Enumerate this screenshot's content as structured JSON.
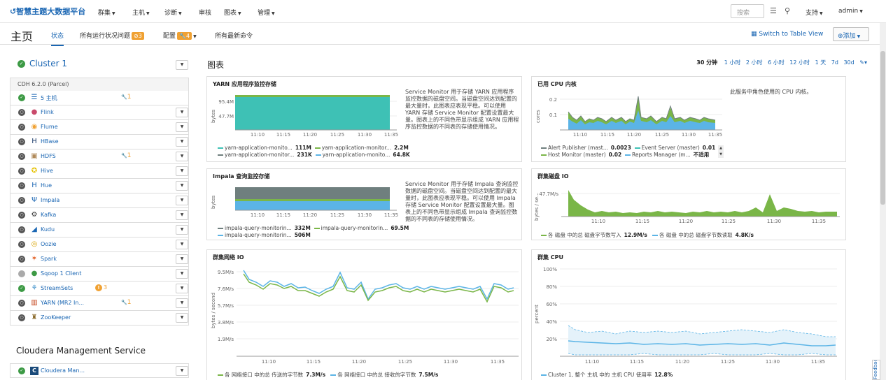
{
  "app": {
    "logo_text": "智慧主题大数据平台"
  },
  "topnav": {
    "items": [
      "群集",
      "主机",
      "诊断",
      "审核",
      "图表",
      "管理"
    ],
    "search_placeholder": "搜索",
    "support": "支持",
    "user": "admin"
  },
  "subbar": {
    "page_title": "主页",
    "tabs": [
      {
        "label": "状态"
      },
      {
        "label": "所有运行状况问题",
        "badge": "3"
      },
      {
        "label": "配置",
        "badge": "4"
      },
      {
        "label": "所有最新命令"
      }
    ],
    "switch_view": "Switch to Table View",
    "add_button": "添加"
  },
  "cluster": {
    "name": "Cluster 1",
    "version": "CDH 6.2.0 (Parcel)",
    "services": [
      {
        "name": "5 主机",
        "icon": "hosts-icon",
        "status": "ok",
        "wrench": "1"
      },
      {
        "name": "Flink",
        "icon": "flink-icon",
        "status": "none"
      },
      {
        "name": "Flume",
        "icon": "flume-icon",
        "status": "none"
      },
      {
        "name": "HBase",
        "icon": "hbase-icon",
        "status": "none"
      },
      {
        "name": "HDFS",
        "icon": "hdfs-icon",
        "status": "none",
        "wrench": "1"
      },
      {
        "name": "Hive",
        "icon": "hive-icon",
        "status": "none"
      },
      {
        "name": "Hue",
        "icon": "hue-icon",
        "status": "none"
      },
      {
        "name": "Impala",
        "icon": "impala-icon",
        "status": "none"
      },
      {
        "name": "Kafka",
        "icon": "kafka-icon",
        "status": "none"
      },
      {
        "name": "Kudu",
        "icon": "kudu-icon",
        "status": "none"
      },
      {
        "name": "Oozie",
        "icon": "oozie-icon",
        "status": "none"
      },
      {
        "name": "Spark",
        "icon": "spark-icon",
        "status": "none"
      },
      {
        "name": "Sqoop 1 Client",
        "icon": "sqoop-icon",
        "status": "gray"
      },
      {
        "name": "StreamSets",
        "icon": "streamsets-icon",
        "status": "ok",
        "warn": "3"
      },
      {
        "name": "YARN (MR2 In...",
        "icon": "yarn-icon",
        "status": "none",
        "wrench": "1"
      },
      {
        "name": "ZooKeeper",
        "icon": "zookeeper-icon",
        "status": "none"
      }
    ]
  },
  "cms": {
    "title": "Cloudera Management Service",
    "item": "Cloudera Man..."
  },
  "charts_header": {
    "title": "图表",
    "ranges": [
      "30 分钟",
      "1 小时",
      "2 小时",
      "6 小时",
      "12 小时",
      "1 天",
      "7d",
      "30d"
    ]
  },
  "colors": {
    "accent": "#1a66b3",
    "teal": "#3ec1b5",
    "green": "#7ab648",
    "blue": "#5bb4e6",
    "orange": "#f0a132",
    "gray": "#6f7f7e"
  },
  "chart_data": [
    {
      "id": "yarn-storage",
      "type": "area",
      "title": "YARN 应用程序监控存储",
      "ylabel": "bytes",
      "yticks": [
        "95.4M",
        "47.7M"
      ],
      "xticks": [
        "11:10",
        "11:15",
        "11:20",
        "11:25",
        "11:30",
        "11:35"
      ],
      "description": "Service Monitor 用于存储 YARN 应用程序监控数据的磁盘空间。当磁盘空间达到配置的最大量时，此图表应表现平稳。可以使用 YARN 存储 Service Monitor 配置设置最大量。图表上的不同色带显示组成 YARN 应用程序监控数据的不同表的存储使用情况。",
      "series": [
        {
          "name": "yarn-application-monito...",
          "value": "111M",
          "color": "#3ec1b5"
        },
        {
          "name": "yarn-application-monitor...",
          "value": "2.2M",
          "color": "#7ab648"
        },
        {
          "name": "yarn-application-monitor...",
          "value": "231K",
          "color": "#6f7f7e"
        },
        {
          "name": "yarn-application-monito...",
          "value": "64.8K",
          "color": "#5bb4e6"
        }
      ]
    },
    {
      "id": "cpu-cores",
      "type": "area",
      "title": "已用 CPU 内核",
      "ylabel": "cores",
      "yticks": [
        "0.2",
        "0.1"
      ],
      "xticks": [
        "11:10",
        "11:15",
        "11:20",
        "11:25",
        "11:30",
        "11:35"
      ],
      "description": "此服务中角色使用的 CPU 内核。",
      "series": [
        {
          "name": "Alert Publisher (mast...",
          "value": "0.0023",
          "color": "#6f7f7e"
        },
        {
          "name": "Event Server (master)",
          "value": "0.01",
          "color": "#3ec1b5"
        },
        {
          "name": "Host Monitor (master)",
          "value": "0.02",
          "color": "#7ab648"
        },
        {
          "name": "Reports Manager (m...",
          "value": "不适用",
          "color": "#5bb4e6"
        }
      ]
    },
    {
      "id": "impala-storage",
      "type": "area",
      "title": "Impala 查询监控存储",
      "ylabel": "bytes",
      "xticks": [
        "11:10",
        "11:15",
        "11:20",
        "11:25",
        "11:30",
        "11:35"
      ],
      "description": "Service Monitor 用于存储 Impala 查询监控数据的磁盘空间。当磁盘空间达到配置的最大量时，此图表应表现平稳。可以使用 Impala 存储 Service Monitor 配置设置最大量。图表上的不同色带显示组成 Impala 查询监控数据的不同表的存储使用情况。",
      "series": [
        {
          "name": "impala-query-monitorin...",
          "value": "332M",
          "color": "#6f7f7e"
        },
        {
          "name": "impala-query-monitorin...",
          "value": "69.5M",
          "color": "#7ab648"
        },
        {
          "name": "impala-query-monitorin...",
          "value": "506M",
          "color": "#5bb4e6"
        }
      ]
    },
    {
      "id": "disk-io",
      "type": "area",
      "title": "群集磁盘 IO",
      "ylabel": "bytes / se...",
      "yticks": [
        "47.7M/s"
      ],
      "xticks": [
        "11:10",
        "11:15",
        "11:20",
        "11:25",
        "11:30",
        "11:35"
      ],
      "series": [
        {
          "name": "各 磁盘 中的总 磁盘字节数写入",
          "value": "12.9M/s",
          "color": "#7ab648"
        },
        {
          "name": "各 磁盘 中的总 磁盘字节数读取",
          "value": "4.8K/s",
          "color": "#5bb4e6"
        }
      ]
    },
    {
      "id": "network-io",
      "type": "line",
      "title": "群集网络 IO",
      "ylabel": "bytes / second",
      "yticks": [
        "9.5M/s",
        "7.6M/s",
        "5.7M/s",
        "3.8M/s",
        "1.9M/s"
      ],
      "xticks": [
        "11:10",
        "11:15",
        "11:20",
        "11:25",
        "11:30",
        "11:35"
      ],
      "series": [
        {
          "name": "各 网络接口 中的总 传送的字节数",
          "value": "7.3M/s",
          "color": "#7ab648"
        },
        {
          "name": "各 网络接口 中的总 接收的字节数",
          "value": "7.5M/s",
          "color": "#5bb4e6"
        }
      ]
    },
    {
      "id": "cluster-cpu",
      "type": "line",
      "title": "群集 CPU",
      "ylabel": "percent",
      "yticks": [
        "100%",
        "80%",
        "60%",
        "40%",
        "20%"
      ],
      "xticks": [
        "11:10",
        "11:15",
        "11:20",
        "11:25",
        "11:30",
        "11:35"
      ],
      "series": [
        {
          "name": "Cluster 1, 整个 主机 中的 主机 CPU 使用率",
          "value": "12.8%",
          "color": "#5bb4e6"
        }
      ]
    }
  ],
  "feedback": "Feedback"
}
